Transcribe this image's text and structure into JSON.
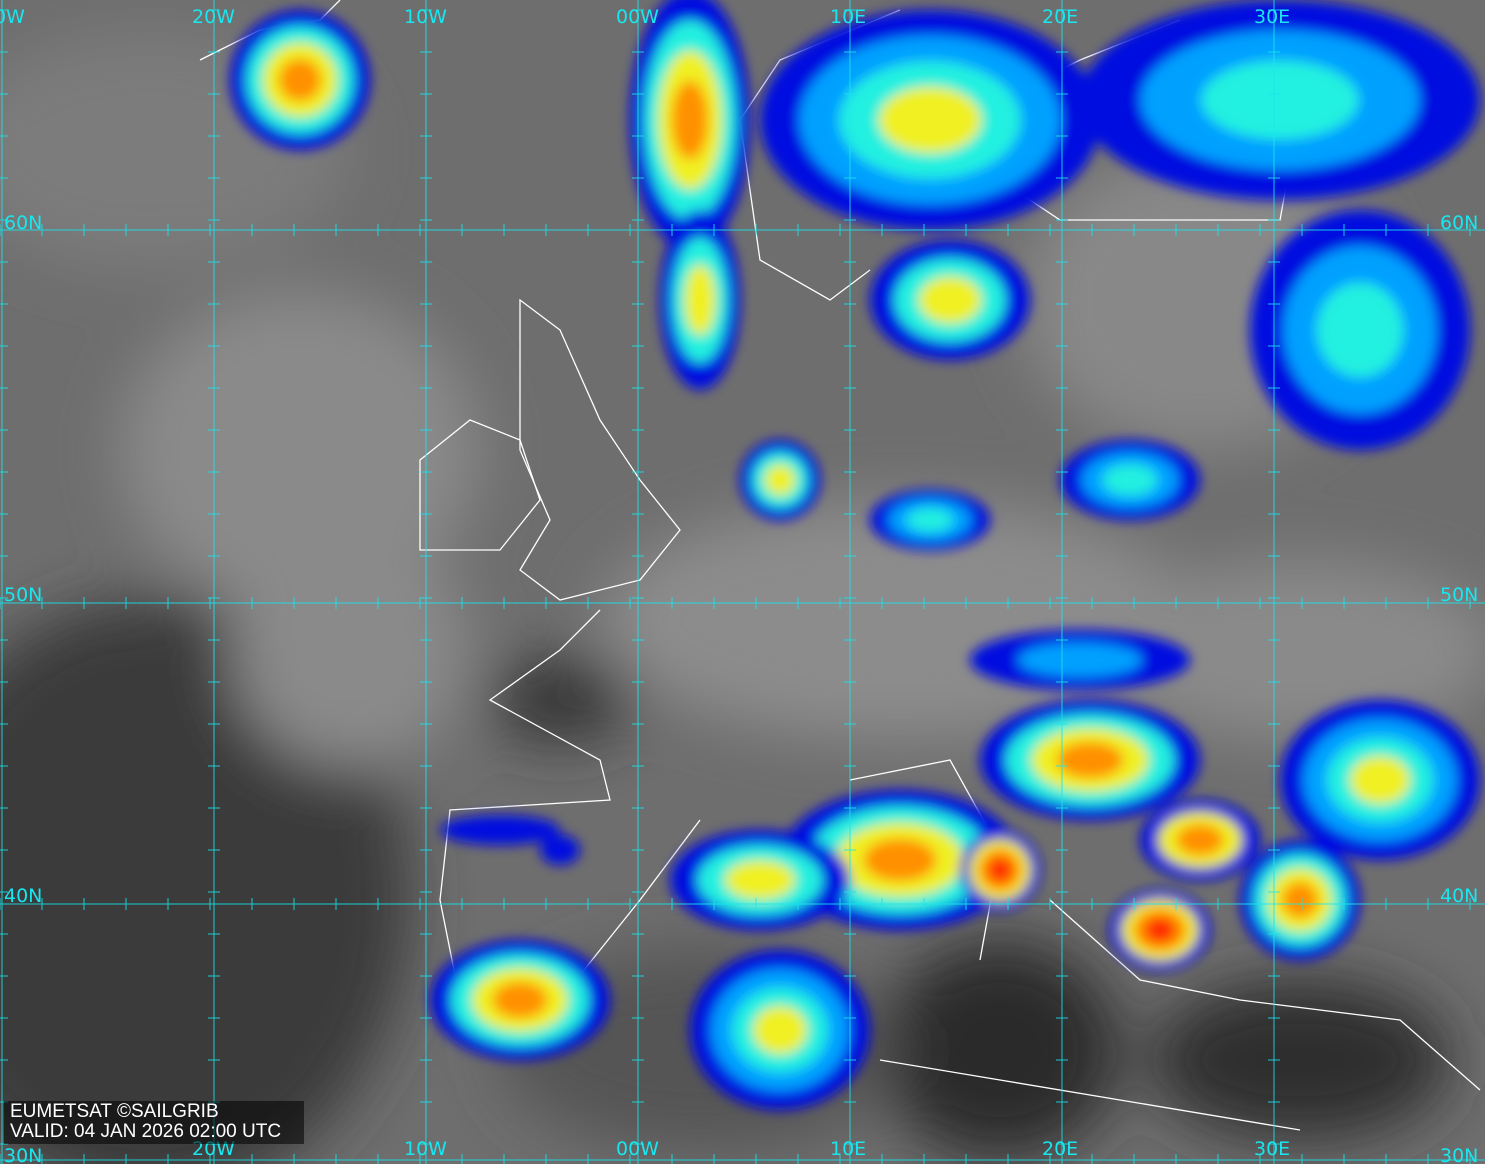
{
  "map": {
    "type": "satellite-infrared-composite",
    "colors": {
      "grid": "#19e6ee",
      "coast": "#ffffff",
      "cloud_scale": [
        "#0010e0",
        "#00a0ff",
        "#20f0e0",
        "#f0f020",
        "#ff9000",
        "#ff2000"
      ]
    },
    "longitude_labels_top": [
      "0W",
      "20W",
      "10W",
      "00W",
      "10E",
      "20E",
      "30E"
    ],
    "longitude_labels_bottom": [
      "20W",
      "10W",
      "00W",
      "10E",
      "20E",
      "30E"
    ],
    "latitude_labels_left": [
      "60N",
      "50N",
      "40N",
      "30N"
    ],
    "latitude_labels_right": [
      "60N",
      "50N",
      "40N",
      "30N"
    ]
  },
  "credit": {
    "line1": "EUMETSAT ©SAILGRIB",
    "line2": "VALID:  04 JAN 2026 02:00 UTC"
  }
}
